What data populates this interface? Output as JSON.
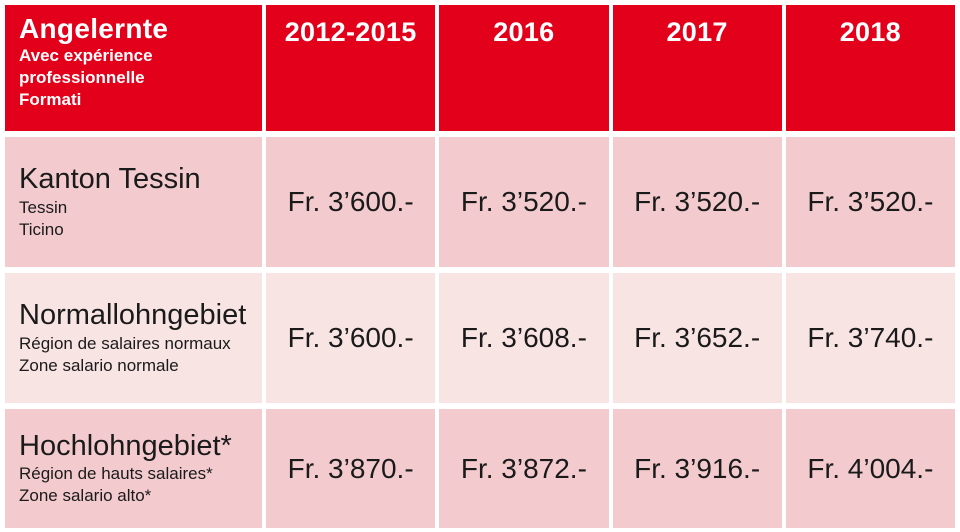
{
  "chart_data": {
    "type": "table",
    "title": "Angelernte / Avec expérience professionnelle / Formati",
    "unit": "CHF (Fr.) per month",
    "columns": [
      "2012-2015",
      "2016",
      "2017",
      "2018"
    ],
    "rows": [
      {
        "label": "Kanton Tessin / Tessin / Ticino",
        "values": [
          3600,
          3520,
          3520,
          3520
        ]
      },
      {
        "label": "Normallohngebiet / Région de salaires normaux / Zone salario normale",
        "values": [
          3600,
          3608,
          3652,
          3740
        ]
      },
      {
        "label": "Hochlohngebiet* / Région de hauts salaires* / Zone salario alto*",
        "values": [
          3870,
          3872,
          3916,
          4004
        ]
      }
    ]
  },
  "table": {
    "header": {
      "title": "Angelernte",
      "subtitle_line1": "Avec expérience professionnelle",
      "subtitle_line2": "Formati",
      "years": [
        "2012-2015",
        "2016",
        "2017",
        "2018"
      ]
    },
    "rows": [
      {
        "title": "Kanton Tessin",
        "sub1": "Tessin",
        "sub2": "Ticino",
        "values": [
          "Fr. 3’600.-",
          "Fr. 3’520.-",
          "Fr. 3’520.-",
          "Fr. 3’520.-"
        ]
      },
      {
        "title": "Normallohngebiet",
        "sub1": "Région de salaires normaux",
        "sub2": "Zone salario normale",
        "values": [
          "Fr. 3’600.-",
          "Fr. 3’608.-",
          "Fr. 3’652.-",
          "Fr. 3’740.-"
        ]
      },
      {
        "title": "Hochlohngebiet*",
        "sub1": "Région de hauts salaires*",
        "sub2": "Zone salario alto*",
        "values": [
          "Fr. 3’870.-",
          "Fr. 3’872.-",
          "Fr. 3’916.-",
          "Fr. 4’004.-"
        ]
      }
    ]
  },
  "colors": {
    "header_red": "#e2001a",
    "row_pink": "#f3cbce",
    "row_pink_light": "#f9e4e4",
    "divider_white": "#ffffff",
    "text_dark": "#1a1a1a",
    "text_white": "#ffffff"
  }
}
